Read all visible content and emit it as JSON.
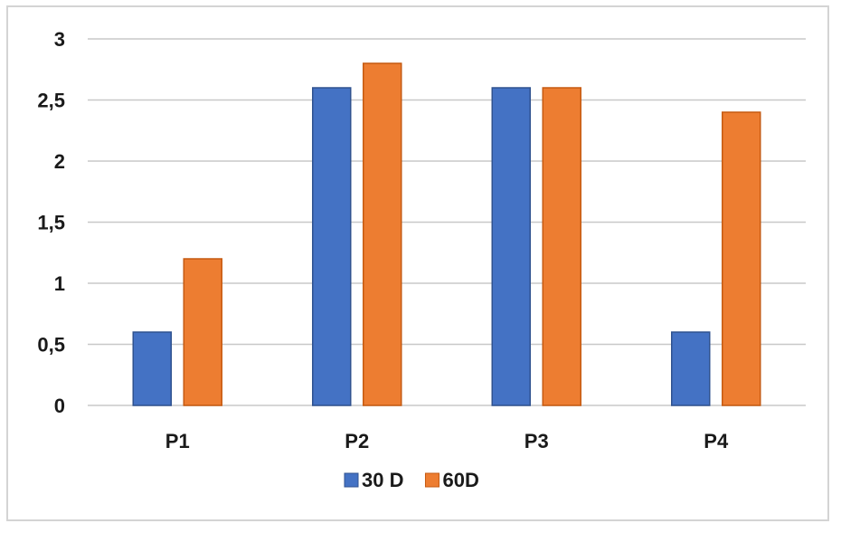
{
  "chart_data": {
    "type": "bar",
    "categories": [
      "P1",
      "P2",
      "P3",
      "P4"
    ],
    "series": [
      {
        "name": "30 D",
        "values": [
          0.6,
          2.6,
          2.6,
          0.6
        ],
        "color": "#4472c4",
        "stroke": "#2f528f"
      },
      {
        "name": "60D",
        "values": [
          1.2,
          2.8,
          2.6,
          2.4
        ],
        "color": "#ed7d31",
        "stroke": "#c55a11"
      }
    ],
    "yticks": [
      "0",
      "0,5",
      "1",
      "1,5",
      "2",
      "2,5",
      "3"
    ],
    "ytick_values": [
      0,
      0.5,
      1,
      1.5,
      2,
      2.5,
      3
    ],
    "ylim": [
      0,
      3
    ],
    "grid": true,
    "legend": "bottom-center",
    "gridline_color": "#c8c8c8"
  }
}
